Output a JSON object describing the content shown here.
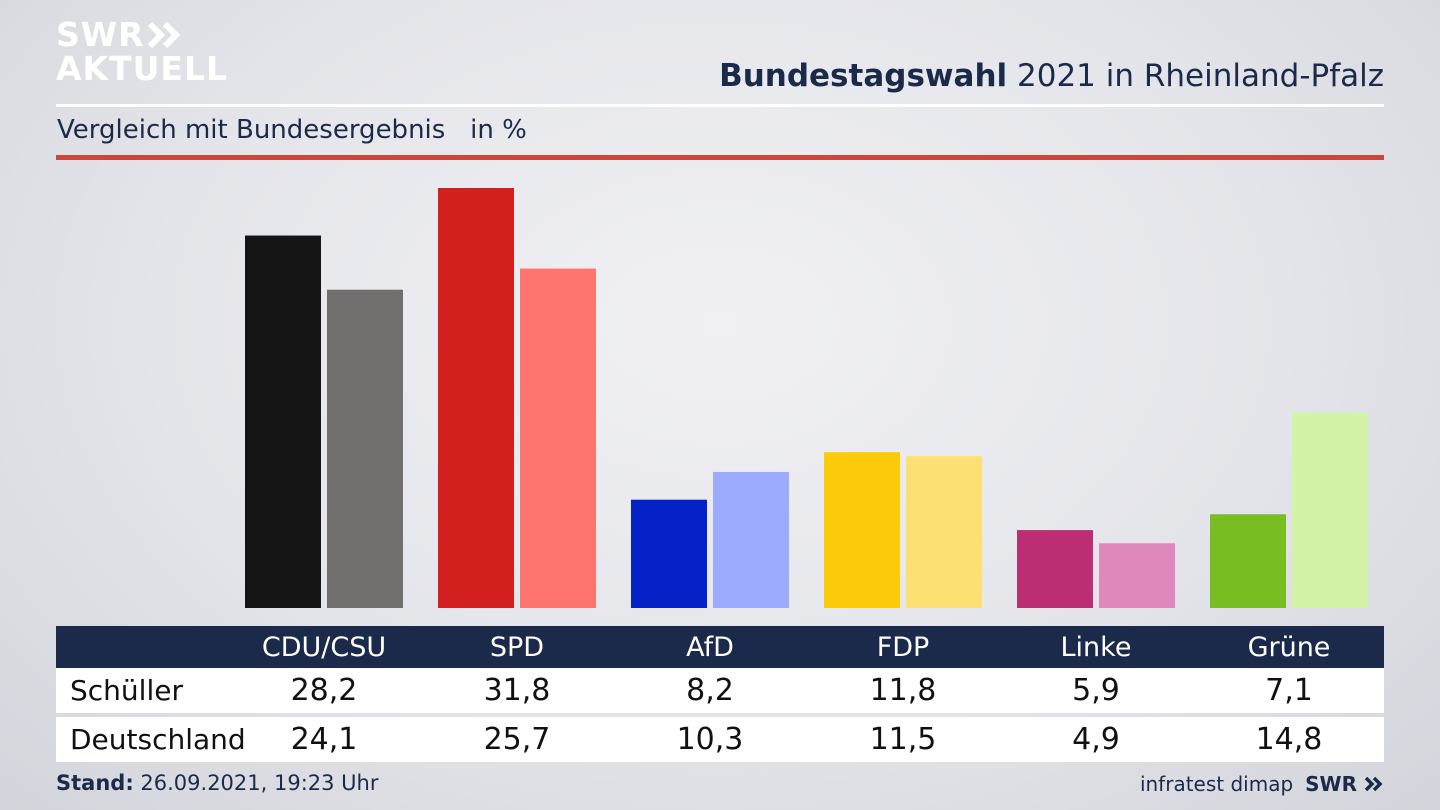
{
  "brand": {
    "line1": "SWR",
    "line2": "AKTUELL",
    "footer_logo": "SWR"
  },
  "header": {
    "title_bold": "Bundestagswahl",
    "title_rest": " 2021 in Rheinland-Pfalz",
    "subtitle": "Vergleich mit Bundesergebnis   in %"
  },
  "colors": {
    "navy": "#1b2a4b",
    "accent_red": "#d0453a"
  },
  "chart_data": {
    "type": "bar",
    "title": "Bundestagswahl 2021 in Rheinland-Pfalz",
    "subtitle": "Vergleich mit Bundesergebnis   in %",
    "categories": [
      "CDU/CSU",
      "SPD",
      "AfD",
      "FDP",
      "Linke",
      "Grüne"
    ],
    "series": [
      {
        "name": "Schüller",
        "values": [
          28.2,
          31.8,
          8.2,
          11.8,
          5.9,
          7.1
        ],
        "colors": [
          "#141414",
          "#d41f1f",
          "#0521c8",
          "#fecb0a",
          "#bc2e74",
          "#78bd22"
        ]
      },
      {
        "name": "Deutschland",
        "values": [
          24.1,
          25.7,
          10.3,
          11.5,
          4.9,
          14.8
        ],
        "colors": [
          "#706f6d",
          "#fe746f",
          "#9dabfe",
          "#fde074",
          "#df88bb",
          "#d3f4a7"
        ]
      }
    ],
    "ylim": [
      0,
      31.8
    ],
    "grid": false
  },
  "table": {
    "rows": [
      {
        "label": "Schüller",
        "values": [
          "28,2",
          "31,8",
          "8,2",
          "11,8",
          "5,9",
          "7,1"
        ]
      },
      {
        "label": "Deutschland",
        "values": [
          "24,1",
          "25,7",
          "10,3",
          "11,5",
          "4,9",
          "14,8"
        ]
      }
    ]
  },
  "footer": {
    "stand_label": "Stand:",
    "stand_value": " 26.09.2021, 19:23 Uhr",
    "source": "infratest dimap"
  }
}
